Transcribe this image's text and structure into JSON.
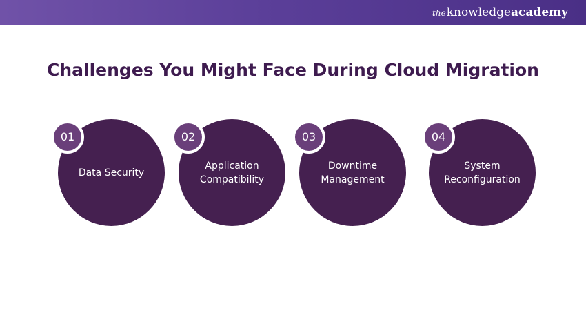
{
  "brand": {
    "prefix": "the",
    "word1": "knowledge",
    "word2": "academy"
  },
  "title": "Challenges You Might Face During Cloud Migration",
  "items": [
    {
      "number": "01",
      "label": "Data Security"
    },
    {
      "number": "02",
      "label": "Application\nCompatibility"
    },
    {
      "number": "03",
      "label": "Downtime\nManagement"
    },
    {
      "number": "04",
      "label": "System\nReconfiguration"
    }
  ],
  "colors": {
    "header_gradient_start": "#7052a8",
    "header_gradient_end": "#4a2f86",
    "title": "#3e1b4f",
    "circle": "#452050",
    "badge": "#6a3f7a"
  }
}
